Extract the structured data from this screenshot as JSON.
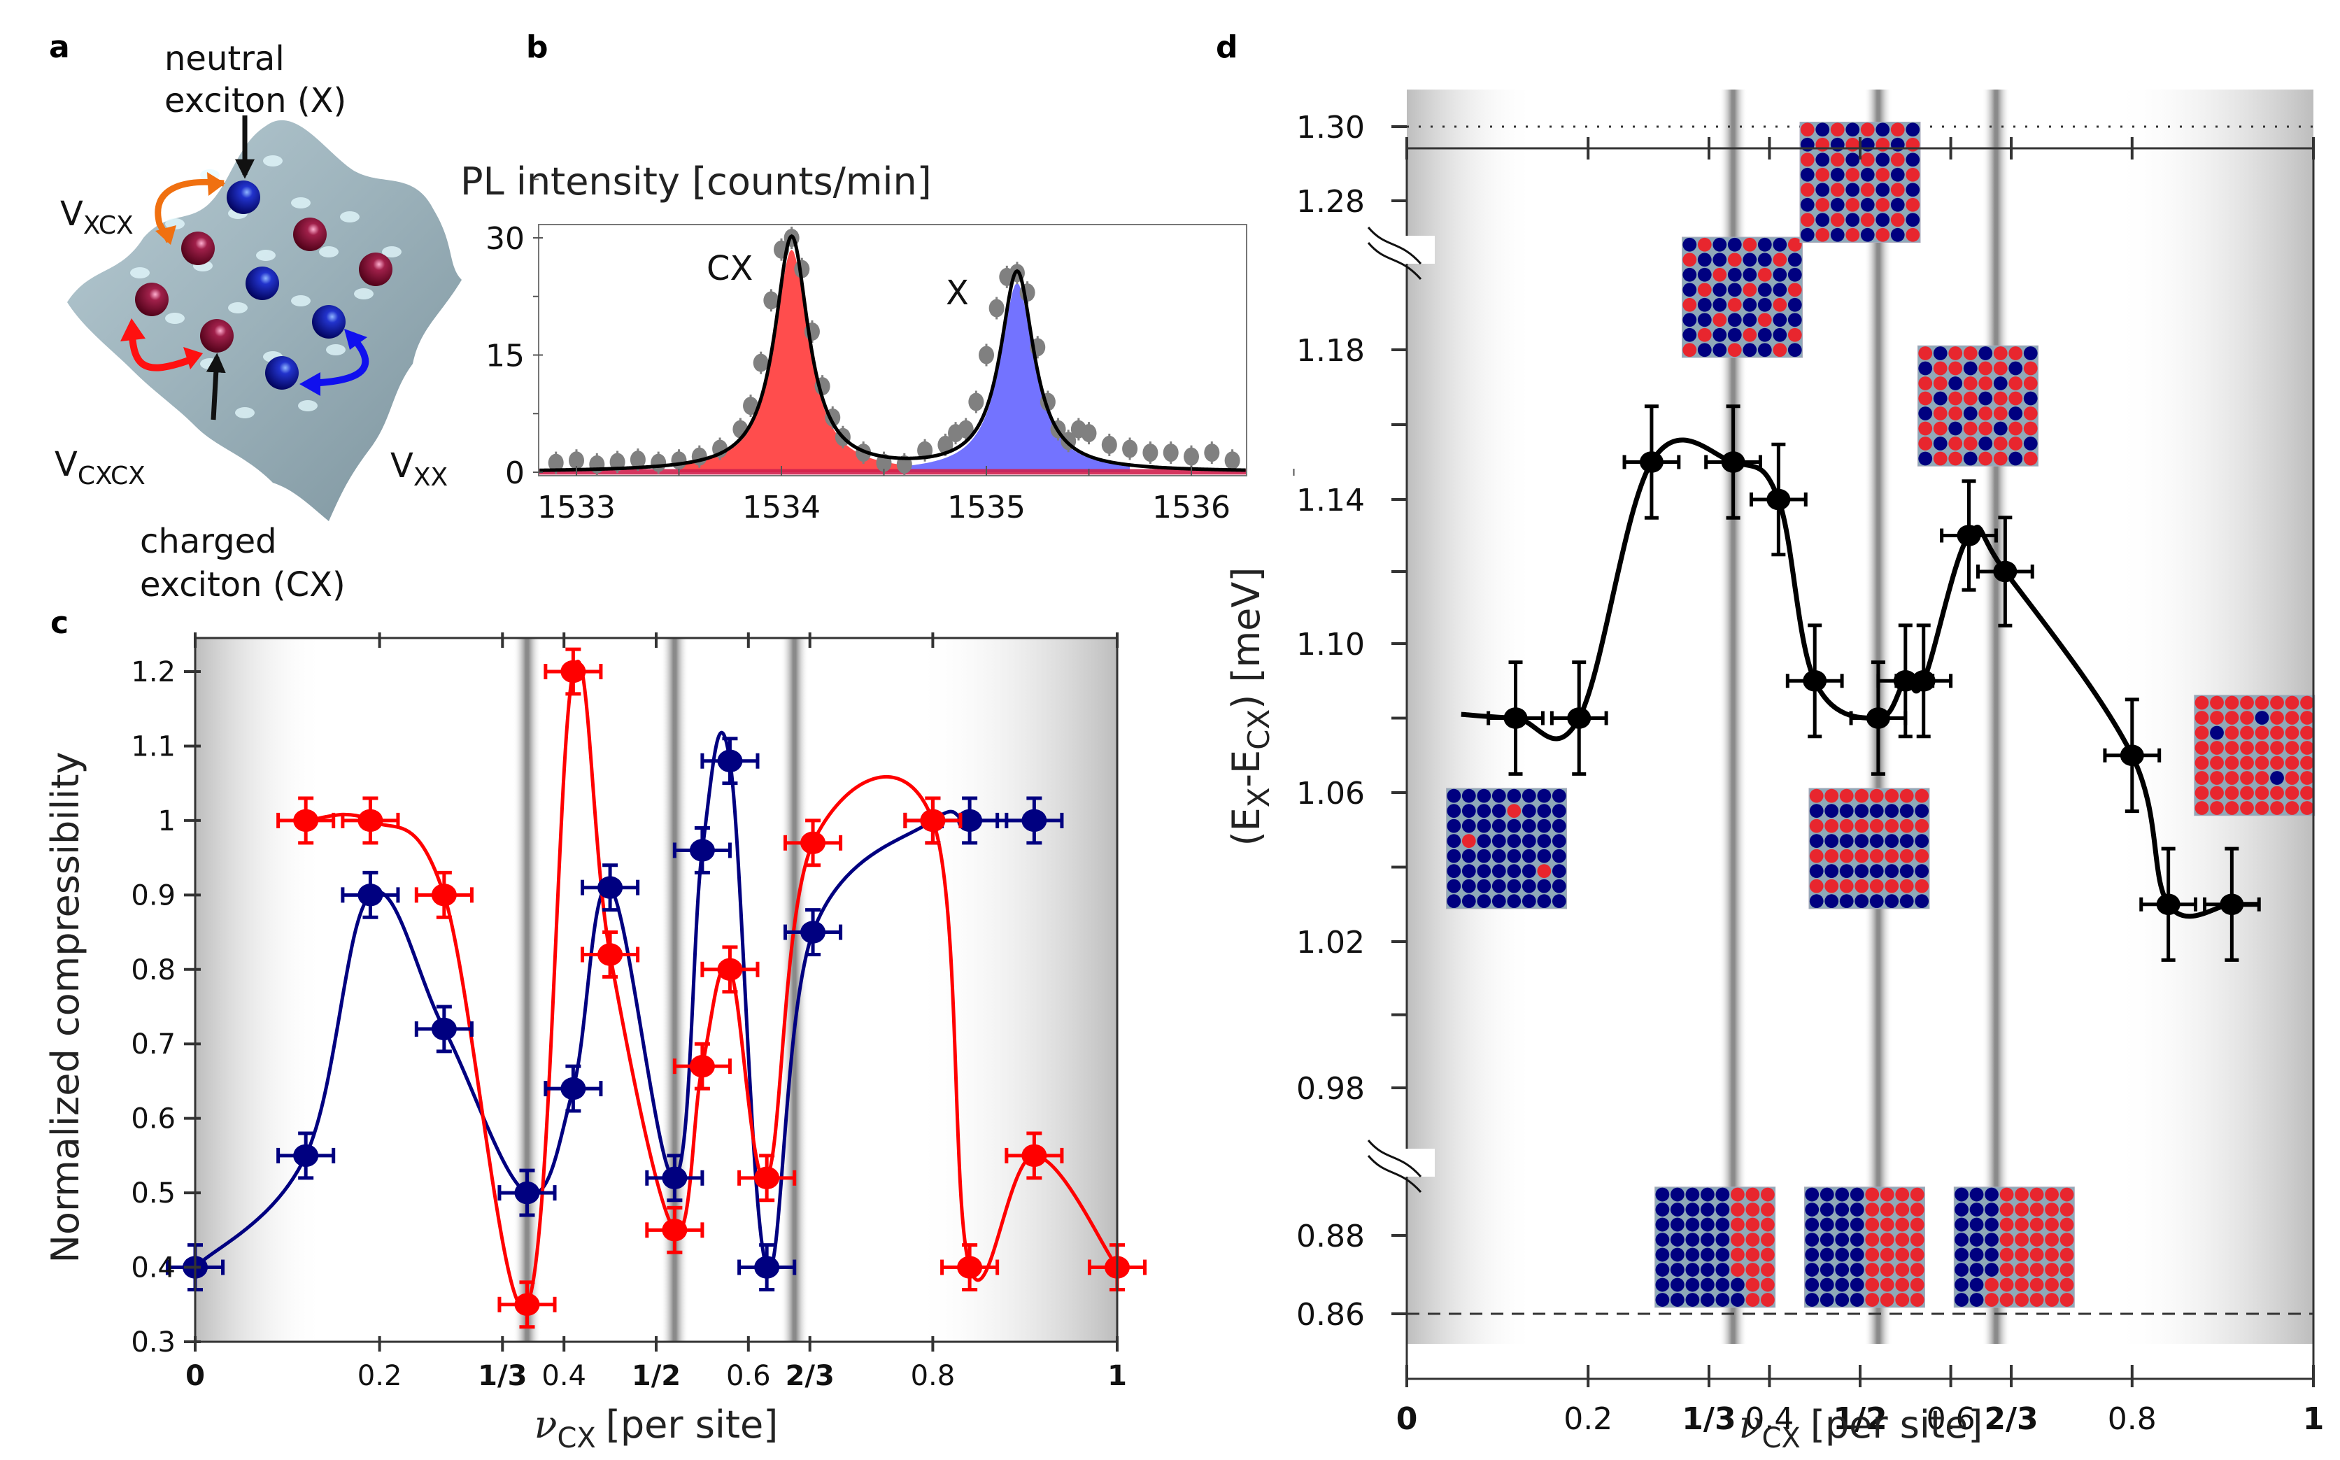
{
  "panel_labels": [
    "a",
    "b",
    "c",
    "d"
  ],
  "panel_a": {
    "labels": {
      "neutral_line1": "neutral",
      "neutral_line2": "exciton (X)",
      "charged_line1": "charged",
      "charged_line2": "exciton (CX)",
      "v_xcx_main": "V",
      "v_xcx_sub": "XCX",
      "v_cxcx_main": "V",
      "v_cxcx_sub": "CXCX",
      "v_xx_main": "V",
      "v_xx_sub": "XX"
    },
    "colors": {
      "surface": "#9fb4bd",
      "neutral": "#1a1a9a",
      "charged": "#8a1538",
      "arrow_xcx": "#f07010",
      "arrow_cxcx": "#ff1010",
      "arrow_xx": "#1010ee"
    }
  },
  "chart_data": [
    {
      "panel": "b",
      "type": "line",
      "title": "",
      "ylabel": "PL intensity [counts/min]",
      "xlabel": "",
      "xlim": [
        1532.8,
        1536.3
      ],
      "ylim": [
        -0.5,
        33
      ],
      "xticks": [
        1533,
        1534,
        1535,
        1536
      ],
      "yticks": [
        0,
        15,
        30
      ],
      "annotations": [
        {
          "text": "CX",
          "x": 1533.75,
          "y": 27
        },
        {
          "text": "X",
          "x": 1534.85,
          "y": 22.5
        }
      ],
      "peaks": [
        {
          "name": "CX",
          "center": 1534.05,
          "amplitude": 30,
          "width": 0.1,
          "fill": "#ff4d4d"
        },
        {
          "name": "X",
          "center": 1535.15,
          "amplitude": 25.5,
          "width": 0.1,
          "fill": "#7373ff"
        }
      ],
      "data_color": "#808080",
      "fit_color": "#000000",
      "series": [
        {
          "name": "data",
          "x": [
            1532.8,
            1532.9,
            1533.0,
            1533.1,
            1533.2,
            1533.3,
            1533.4,
            1533.5,
            1533.6,
            1533.7,
            1533.8,
            1533.85,
            1533.9,
            1533.95,
            1534.0,
            1534.05,
            1534.1,
            1534.15,
            1534.2,
            1534.25,
            1534.3,
            1534.4,
            1534.5,
            1534.6,
            1534.7,
            1534.8,
            1534.85,
            1534.9,
            1534.95,
            1535.0,
            1535.05,
            1535.1,
            1535.15,
            1535.2,
            1535.25,
            1535.3,
            1535.35,
            1535.4,
            1535.45,
            1535.5,
            1535.6,
            1535.7,
            1535.8,
            1535.9,
            1536.0,
            1536.1,
            1536.2,
            1536.3
          ],
          "y": [
            1.5,
            1.2,
            1.5,
            1.0,
            1.3,
            1.6,
            1.2,
            1.5,
            2.0,
            3.0,
            5.5,
            8.5,
            14.0,
            22.0,
            28.5,
            30.0,
            26.0,
            18.0,
            11.0,
            7.0,
            4.5,
            2.5,
            1.2,
            1.0,
            2.8,
            3.5,
            5.0,
            5.5,
            9.0,
            15.0,
            21.0,
            25.0,
            25.5,
            23.0,
            16.0,
            9.0,
            5.5,
            4.0,
            5.5,
            5.0,
            3.5,
            3.0,
            2.5,
            2.5,
            2.0,
            2.5,
            1.5,
            1.2
          ]
        }
      ]
    },
    {
      "panel": "c",
      "type": "line",
      "title": "",
      "xlabel": "ν_CX [per site]",
      "xlabel_main": "ν",
      "xlabel_sub": "CX",
      "xlabel_rest": "[per site]",
      "ylabel": "Normalized compressibility",
      "xlim": [
        0,
        1
      ],
      "ylim": [
        0.3,
        1.25
      ],
      "xticks": [
        {
          "v": 0,
          "label": "0",
          "bold": true
        },
        {
          "v": 0.2,
          "label": "0.2",
          "bold": false
        },
        {
          "v": 0.3333,
          "label": "1/3",
          "bold": true
        },
        {
          "v": 0.4,
          "label": "0.4",
          "bold": false
        },
        {
          "v": 0.5,
          "label": "1/2",
          "bold": true
        },
        {
          "v": 0.6,
          "label": "0.6",
          "bold": false
        },
        {
          "v": 0.6667,
          "label": "2/3",
          "bold": true
        },
        {
          "v": 0.8,
          "label": "0.8",
          "bold": false
        },
        {
          "v": 1,
          "label": "1",
          "bold": true
        }
      ],
      "yticks": [
        {
          "v": 0.3,
          "label": "0.3"
        },
        {
          "v": 0.4,
          "label": "0.4"
        },
        {
          "v": 0.5,
          "label": "0.5"
        },
        {
          "v": 0.6,
          "label": "0.6"
        },
        {
          "v": 0.7,
          "label": "0.7"
        },
        {
          "v": 0.8,
          "label": "0.8"
        },
        {
          "v": 0.9,
          "label": "0.9"
        },
        {
          "v": 1.0,
          "label": "1"
        },
        {
          "v": 1.1,
          "label": "1.1"
        },
        {
          "v": 1.2,
          "label": "1.2"
        }
      ],
      "shaded_lines": [
        0.36,
        0.52,
        0.65
      ],
      "edge_shading": true,
      "series": [
        {
          "name": "blue",
          "color": "#000080",
          "x": [
            0,
            0.12,
            0.19,
            0.27,
            0.36,
            0.41,
            0.45,
            0.52,
            0.55,
            0.58,
            0.62,
            0.67,
            0.8,
            0.84,
            0.91
          ],
          "y": [
            0.4,
            0.55,
            0.9,
            0.72,
            0.5,
            0.64,
            0.91,
            0.52,
            0.96,
            1.08,
            0.4,
            0.85,
            1.0,
            1.0,
            1.0
          ],
          "xerr": 0.03,
          "yerr": 0.03
        },
        {
          "name": "red",
          "color": "#ff0000",
          "x": [
            0.12,
            0.19,
            0.27,
            0.36,
            0.41,
            0.45,
            0.52,
            0.55,
            0.58,
            0.62,
            0.67,
            0.8,
            0.84,
            0.91,
            1.0
          ],
          "y": [
            1.0,
            1.0,
            0.9,
            0.35,
            1.2,
            0.82,
            0.45,
            0.67,
            0.8,
            0.52,
            0.97,
            1.0,
            0.4,
            0.55,
            0.4
          ],
          "xerr": 0.03,
          "yerr": 0.03
        }
      ]
    },
    {
      "panel": "d",
      "type": "line",
      "title": "",
      "xlabel": "ν_CX [per site]",
      "xlabel_main": "ν",
      "xlabel_sub": "CX",
      "xlabel_rest": "[per site]",
      "ylabel": "(E_X-E_CX) [meV]",
      "ylabel_parts": {
        "open": "(E",
        "sub1": "X",
        "mid": "-E",
        "sub2": "CX",
        "close": ") [meV]"
      },
      "xlim": [
        0,
        1
      ],
      "ylim_segments": [
        [
          0.85,
          0.9
        ],
        [
          0.96,
          1.2
        ],
        [
          1.27,
          1.31
        ]
      ],
      "broken_axis": true,
      "xticks": [
        {
          "v": 0,
          "label": "0",
          "bold": true
        },
        {
          "v": 0.2,
          "label": "0.2",
          "bold": false
        },
        {
          "v": 0.3333,
          "label": "1/3",
          "bold": true
        },
        {
          "v": 0.4,
          "label": "0.4",
          "bold": false
        },
        {
          "v": 0.5,
          "label": "1/2",
          "bold": true
        },
        {
          "v": 0.6,
          "label": "0.6",
          "bold": false
        },
        {
          "v": 0.6667,
          "label": "2/3",
          "bold": true
        },
        {
          "v": 0.8,
          "label": "0.8",
          "bold": false
        },
        {
          "v": 1,
          "label": "1",
          "bold": true
        }
      ],
      "yticks": [
        {
          "v": 0.86,
          "label": "0.86"
        },
        {
          "v": 0.88,
          "label": "0.88"
        },
        {
          "v": 0.98,
          "label": "0.98"
        },
        {
          "v": 1.0,
          "label": ""
        },
        {
          "v": 1.02,
          "label": "1.02"
        },
        {
          "v": 1.04,
          "label": ""
        },
        {
          "v": 1.06,
          "label": "1.06"
        },
        {
          "v": 1.08,
          "label": ""
        },
        {
          "v": 1.1,
          "label": "1.10"
        },
        {
          "v": 1.12,
          "label": ""
        },
        {
          "v": 1.14,
          "label": "1.14"
        },
        {
          "v": 1.16,
          "label": ""
        },
        {
          "v": 1.18,
          "label": "1.18"
        },
        {
          "v": 1.28,
          "label": "1.28"
        },
        {
          "v": 1.3,
          "label": "1.30"
        }
      ],
      "reference_lines": [
        {
          "y": 1.3,
          "style": "dotted"
        },
        {
          "y": 0.86,
          "style": "dashed"
        }
      ],
      "shaded_lines": [
        0.36,
        0.52,
        0.65
      ],
      "edge_shading": true,
      "series": [
        {
          "name": "energy difference",
          "color": "#000000",
          "x": [
            0.12,
            0.19,
            0.27,
            0.36,
            0.41,
            0.45,
            0.52,
            0.55,
            0.57,
            0.62,
            0.66,
            0.8,
            0.84,
            0.91
          ],
          "y": [
            1.08,
            1.08,
            1.15,
            1.15,
            1.14,
            1.09,
            1.08,
            1.09,
            1.09,
            1.13,
            1.12,
            1.07,
            1.03,
            1.03
          ],
          "xerr": 0.03,
          "yerr": 0.015
        }
      ],
      "insets": [
        {
          "name": "sparse-cx",
          "x_center": 0.11,
          "y_center": 1.045,
          "pattern": [
            "BBBBBBBB",
            "BBBBRBBB",
            "BBBBBBBB",
            "BRBBBBBB",
            "BBBBBBBB",
            "BBBBBBRB",
            "BBBBBBBB",
            "BBBBBBBB"
          ]
        },
        {
          "name": "third-filling",
          "x_center": 0.37,
          "y_center": 1.195,
          "pattern": [
            "BRBBRBBR",
            "RBBRBBRB",
            "BBRBBRBB",
            "BRBBRBBR",
            "RBBRBBRB",
            "BBRBBRBB",
            "BRBBRBBR",
            "RBBRBBRB"
          ]
        },
        {
          "name": "checkerboard",
          "x_center": 0.5,
          "y_center": 1.285,
          "pattern": [
            "RBRBRBRB",
            "BRBRBRBR",
            "RBRBRBRB",
            "BRBRBRBR",
            "RBRBRBRB",
            "BRBRBRBR",
            "RBRBRBRB",
            "BRBRBRBR"
          ]
        },
        {
          "name": "stripes",
          "x_center": 0.51,
          "y_center": 1.045,
          "pattern": [
            "RRRRRRRR",
            "BBBBBBBB",
            "RRRRRRRR",
            "BBBBBBBB",
            "RRRRRRRR",
            "BBBBBBBB",
            "RRRRRRRR",
            "BBBBBBBB"
          ]
        },
        {
          "name": "two-thirds-filling",
          "x_center": 0.63,
          "y_center": 1.165,
          "pattern": [
            "RBRRBRRB",
            "BRRBRRBR",
            "RRBRRBRR",
            "RBRRBRRB",
            "BRRBRRBR",
            "RRBRRBRR",
            "RBRRBRRB",
            "BRRBRRBR"
          ]
        },
        {
          "name": "sparse-x",
          "x_center": 0.935,
          "y_center": 1.07,
          "pattern": [
            "RRRRRRRR",
            "RRRRBRRR",
            "RBRRRRRR",
            "RRRRRRRR",
            "RRRRRRRR",
            "RRRRRBRR",
            "RRRRRRRR",
            "RRRRRRRR"
          ]
        },
        {
          "name": "phase-sep-1",
          "x_center": 0.34,
          "y_center": 0.877,
          "pattern": [
            "BBBBBRRR",
            "BBBBBRRR",
            "BBBBBRRR",
            "BBBBBRRR",
            "BBBBBRRR",
            "BBBBBRRR",
            "BBBBBBRR",
            "BBBBBBRR"
          ]
        },
        {
          "name": "phase-sep-2",
          "x_center": 0.505,
          "y_center": 0.877,
          "pattern": [
            "BBBBRRRR",
            "BBBBRRRR",
            "BBBBRRRR",
            "BBBBRRRR",
            "BBBBRRRR",
            "BBBBRRRR",
            "BBBBRRRR",
            "BBBBRRRR"
          ]
        },
        {
          "name": "phase-sep-3",
          "x_center": 0.67,
          "y_center": 0.877,
          "pattern": [
            "BBBRRRRR",
            "BBBRRRRR",
            "BBBRRRRR",
            "BBBRRRRR",
            "BBBRRRRR",
            "BBBRRRRR",
            "BBRRRRRR",
            "BBRRRRRR"
          ]
        }
      ],
      "inset_colors": {
        "B": "#000080",
        "R": "#e8262e",
        "grid": "#8fa9b8"
      }
    }
  ]
}
